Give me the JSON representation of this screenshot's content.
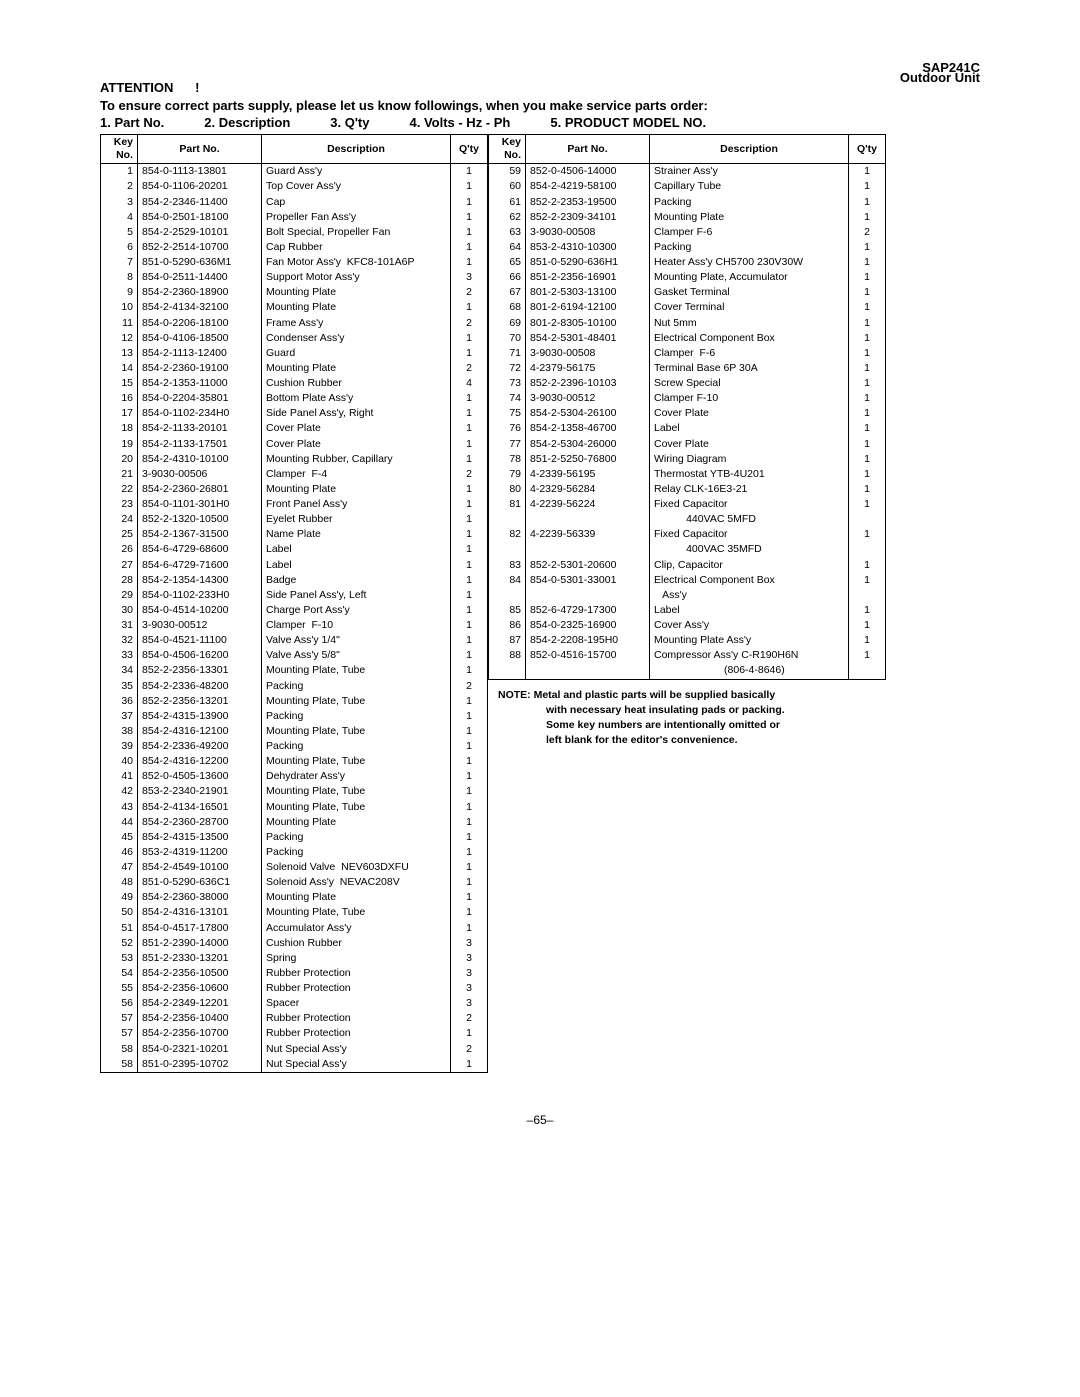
{
  "header": {
    "model": "SAP241C",
    "unit_type": "Outdoor Unit",
    "attention": "ATTENTION",
    "attention_mark": "!",
    "instruction": "To ensure correct parts supply, please let us know followings, when you make service parts order:",
    "f1": "1. Part No.",
    "f2": "2. Description",
    "f3": "3. Q'ty",
    "f4": "4. Volts - Hz - Ph",
    "f5": "5. PRODUCT MODEL NO."
  },
  "cols": {
    "key": "Key No.",
    "part": "Part No.",
    "desc": "Description",
    "qty": "Q'ty"
  },
  "left": [
    {
      "k": "1",
      "p": "854-0-1113-13801",
      "d": "Guard Ass'y",
      "q": "1"
    },
    {
      "k": "2",
      "p": "854-0-1106-20201",
      "d": "Top Cover Ass'y",
      "q": "1"
    },
    {
      "k": "3",
      "p": "854-2-2346-11400",
      "d": "Cap",
      "q": "1"
    },
    {
      "k": "4",
      "p": "854-0-2501-18100",
      "d": "Propeller Fan Ass'y",
      "q": "1"
    },
    {
      "k": "5",
      "p": "854-2-2529-10101",
      "d": "Bolt Special, Propeller Fan",
      "q": "1"
    },
    {
      "k": "6",
      "p": "852-2-2514-10700",
      "d": "Cap Rubber",
      "q": "1"
    },
    {
      "k": "7",
      "p": "851-0-5290-636M1",
      "d": "Fan Motor Ass'y  KFC8-101A6P",
      "q": "1"
    },
    {
      "k": "8",
      "p": "854-0-2511-14400",
      "d": "Support Motor Ass'y",
      "q": "3"
    },
    {
      "k": "9",
      "p": "854-2-2360-18900",
      "d": "Mounting Plate",
      "q": "2"
    },
    {
      "k": "10",
      "p": "854-2-4134-32100",
      "d": "Mounting Plate",
      "q": "1"
    },
    {
      "k": "11",
      "p": "854-0-2206-18100",
      "d": "Frame Ass'y",
      "q": "2"
    },
    {
      "k": "12",
      "p": "854-0-4106-18500",
      "d": "Condenser Ass'y",
      "q": "1"
    },
    {
      "k": "13",
      "p": "854-2-1113-12400",
      "d": "Guard",
      "q": "1"
    },
    {
      "k": "14",
      "p": "854-2-2360-19100",
      "d": "Mounting Plate",
      "q": "2"
    },
    {
      "k": "15",
      "p": "854-2-1353-11000",
      "d": "Cushion Rubber",
      "q": "4"
    },
    {
      "k": "16",
      "p": "854-0-2204-35801",
      "d": "Bottom Plate Ass'y",
      "q": "1"
    },
    {
      "k": "17",
      "p": "854-0-1102-234H0",
      "d": "Side Panel Ass'y, Right",
      "q": "1"
    },
    {
      "k": "18",
      "p": "854-2-1133-20101",
      "d": "Cover Plate",
      "q": "1"
    },
    {
      "k": "19",
      "p": "854-2-1133-17501",
      "d": "Cover Plate",
      "q": "1"
    },
    {
      "k": "20",
      "p": "854-2-4310-10100",
      "d": "Mounting Rubber, Capillary",
      "q": "1"
    },
    {
      "k": "21",
      "p": "3-9030-00506",
      "d": "Clamper  F-4",
      "q": "2"
    },
    {
      "k": "22",
      "p": "854-2-2360-26801",
      "d": "Mounting Plate",
      "q": "1"
    },
    {
      "k": "23",
      "p": "854-0-1101-301H0",
      "d": "Front Panel Ass'y",
      "q": "1"
    },
    {
      "k": "24",
      "p": "852-2-1320-10500",
      "d": "Eyelet Rubber",
      "q": "1"
    },
    {
      "k": "25",
      "p": "854-2-1367-31500",
      "d": "Name Plate",
      "q": "1"
    },
    {
      "k": "26",
      "p": "854-6-4729-68600",
      "d": "Label",
      "q": "1"
    },
    {
      "k": "27",
      "p": "854-6-4729-71600",
      "d": "Label",
      "q": "1"
    },
    {
      "k": "28",
      "p": "854-2-1354-14300",
      "d": "Badge",
      "q": "1"
    },
    {
      "k": "29",
      "p": "854-0-1102-233H0",
      "d": "Side Panel Ass'y, Left",
      "q": "1"
    },
    {
      "k": "30",
      "p": "854-0-4514-10200",
      "d": "Charge Port Ass'y",
      "q": "1"
    },
    {
      "k": "31",
      "p": "3-9030-00512",
      "d": "Clamper  F-10",
      "q": "1"
    },
    {
      "k": "32",
      "p": "854-0-4521-11100",
      "d": "Valve Ass'y 1/4\"",
      "q": "1"
    },
    {
      "k": "33",
      "p": "854-0-4506-16200",
      "d": "Valve Ass'y 5/8\"",
      "q": "1"
    },
    {
      "k": "34",
      "p": "852-2-2356-13301",
      "d": "Mounting Plate, Tube",
      "q": "1"
    },
    {
      "k": "35",
      "p": "854-2-2336-48200",
      "d": "Packing",
      "q": "2"
    },
    {
      "k": "36",
      "p": "852-2-2356-13201",
      "d": "Mounting Plate, Tube",
      "q": "1"
    },
    {
      "k": "37",
      "p": "854-2-4315-13900",
      "d": "Packing",
      "q": "1"
    },
    {
      "k": "38",
      "p": "854-2-4316-12100",
      "d": "Mounting Plate, Tube",
      "q": "1"
    },
    {
      "k": "39",
      "p": "854-2-2336-49200",
      "d": "Packing",
      "q": "1"
    },
    {
      "k": "40",
      "p": "854-2-4316-12200",
      "d": "Mounting Plate, Tube",
      "q": "1"
    },
    {
      "k": "41",
      "p": "852-0-4505-13600",
      "d": "Dehydrater Ass'y",
      "q": "1"
    },
    {
      "k": "42",
      "p": "853-2-2340-21901",
      "d": "Mounting Plate, Tube",
      "q": "1"
    },
    {
      "k": "43",
      "p": "854-2-4134-16501",
      "d": "Mounting Plate, Tube",
      "q": "1"
    },
    {
      "k": "44",
      "p": "854-2-2360-28700",
      "d": "Mounting Plate",
      "q": "1"
    },
    {
      "k": "45",
      "p": "854-2-4315-13500",
      "d": "Packing",
      "q": "1"
    },
    {
      "k": "46",
      "p": "853-2-4319-11200",
      "d": "Packing",
      "q": "1"
    },
    {
      "k": "47",
      "p": "854-2-4549-10100",
      "d": "Solenoid Valve  NEV603DXFU",
      "q": "1"
    },
    {
      "k": "48",
      "p": "851-0-5290-636C1",
      "d": "Solenoid Ass'y  NEVAC208V",
      "q": "1"
    },
    {
      "k": "49",
      "p": "854-2-2360-38000",
      "d": "Mounting Plate",
      "q": "1"
    },
    {
      "k": "50",
      "p": "854-2-4316-13101",
      "d": "Mounting Plate, Tube",
      "q": "1"
    },
    {
      "k": "51",
      "p": "854-0-4517-17800",
      "d": "Accumulator Ass'y",
      "q": "1"
    },
    {
      "k": "52",
      "p": "851-2-2390-14000",
      "d": "Cushion Rubber",
      "q": "3"
    },
    {
      "k": "53",
      "p": "851-2-2330-13201",
      "d": "Spring",
      "q": "3"
    },
    {
      "k": "54",
      "p": "854-2-2356-10500",
      "d": "Rubber Protection",
      "q": "3"
    },
    {
      "k": "55",
      "p": "854-2-2356-10600",
      "d": "Rubber Protection",
      "q": "3"
    },
    {
      "k": "56",
      "p": "854-2-2349-12201",
      "d": "Spacer",
      "q": "3"
    },
    {
      "k": "57",
      "p": "854-2-2356-10400",
      "d": "Rubber Protection",
      "q": "2"
    },
    {
      "k": "57",
      "p": "854-2-2356-10700",
      "d": "Rubber Protection",
      "q": "1"
    },
    {
      "k": "58",
      "p": "854-0-2321-10201",
      "d": "Nut Special Ass'y",
      "q": "2"
    },
    {
      "k": "58",
      "p": "851-0-2395-10702",
      "d": "Nut Special Ass'y",
      "q": "1"
    }
  ],
  "right": [
    {
      "k": "59",
      "p": "852-0-4506-14000",
      "d": "Strainer Ass'y",
      "q": "1"
    },
    {
      "k": "60",
      "p": "854-2-4219-58100",
      "d": "Capillary Tube",
      "q": "1"
    },
    {
      "k": "61",
      "p": "852-2-2353-19500",
      "d": "Packing",
      "q": "1"
    },
    {
      "k": "62",
      "p": "852-2-2309-34101",
      "d": "Mounting Plate",
      "q": "1"
    },
    {
      "k": "63",
      "p": "3-9030-00508",
      "d": "Clamper F-6",
      "q": "2"
    },
    {
      "k": "64",
      "p": "853-2-4310-10300",
      "d": "Packing",
      "q": "1"
    },
    {
      "k": "65",
      "p": "851-0-5290-636H1",
      "d": "Heater Ass'y CH5700 230V30W",
      "q": "1"
    },
    {
      "k": "66",
      "p": "851-2-2356-16901",
      "d": "Mounting Plate, Accumulator",
      "q": "1"
    },
    {
      "k": "67",
      "p": "801-2-5303-13100",
      "d": "Gasket Terminal",
      "q": "1"
    },
    {
      "k": "68",
      "p": "801-2-6194-12100",
      "d": "Cover Terminal",
      "q": "1"
    },
    {
      "k": "69",
      "p": "801-2-8305-10100",
      "d": "Nut 5mm",
      "q": "1"
    },
    {
      "k": "70",
      "p": "854-2-5301-48401",
      "d": "Electrical Component Box",
      "q": "1"
    },
    {
      "k": "71",
      "p": "3-9030-00508",
      "d": "Clamper  F-6",
      "q": "1"
    },
    {
      "k": "72",
      "p": "4-2379-56175",
      "d": "Terminal Base 6P 30A",
      "q": "1"
    },
    {
      "k": "73",
      "p": "852-2-2396-10103",
      "d": "Screw Special",
      "q": "1"
    },
    {
      "k": "74",
      "p": "3-9030-00512",
      "d": "Clamper F-10",
      "q": "1"
    },
    {
      "k": "75",
      "p": "854-2-5304-26100",
      "d": "Cover Plate",
      "q": "1"
    },
    {
      "k": "76",
      "p": "854-2-1358-46700",
      "d": "Label",
      "q": "1"
    },
    {
      "k": "77",
      "p": "854-2-5304-26000",
      "d": "Cover Plate",
      "q": "1"
    },
    {
      "k": "78",
      "p": "851-2-5250-76800",
      "d": "Wiring Diagram",
      "q": "1"
    },
    {
      "k": "79",
      "p": "4-2339-56195",
      "d": "Thermostat YTB-4U201",
      "q": "1"
    },
    {
      "k": "80",
      "p": "4-2329-56284",
      "d": "Relay CLK-16E3-21",
      "q": "1"
    },
    {
      "k": "81",
      "p": "4-2239-56224",
      "d": "Fixed Capacitor",
      "q": "1"
    },
    {
      "k": "",
      "p": "",
      "d": "           440VAC 5MFD",
      "q": ""
    },
    {
      "k": "82",
      "p": "4-2239-56339",
      "d": "Fixed Capacitor",
      "q": "1"
    },
    {
      "k": "",
      "p": "",
      "d": "           400VAC 35MFD",
      "q": ""
    },
    {
      "k": "83",
      "p": "852-2-5301-20600",
      "d": "Clip, Capacitor",
      "q": "1"
    },
    {
      "k": "84",
      "p": "854-0-5301-33001",
      "d": "Electrical Component Box",
      "q": "1"
    },
    {
      "k": "",
      "p": "",
      "d": "   Ass'y",
      "q": ""
    },
    {
      "k": "85",
      "p": "852-6-4729-17300",
      "d": "Label",
      "q": "1"
    },
    {
      "k": "86",
      "p": "854-0-2325-16900",
      "d": "Cover Ass'y",
      "q": "1"
    },
    {
      "k": "87",
      "p": "854-2-2208-195H0",
      "d": "Mounting Plate Ass'y",
      "q": "1"
    },
    {
      "k": "88",
      "p": "852-0-4516-15700",
      "d": "Compressor Ass'y C-R190H6N",
      "q": "1"
    },
    {
      "k": "",
      "p": "",
      "d": "                        (806-4-8646)",
      "q": ""
    }
  ],
  "note": {
    "l1": "NOTE:  Metal and plastic parts will be supplied basically",
    "l2": "with necessary heat insulating pads or packing.",
    "l3": "Some key numbers are intentionally omitted or",
    "l4": "left blank for the editor's convenience."
  },
  "page_num": "–65–"
}
